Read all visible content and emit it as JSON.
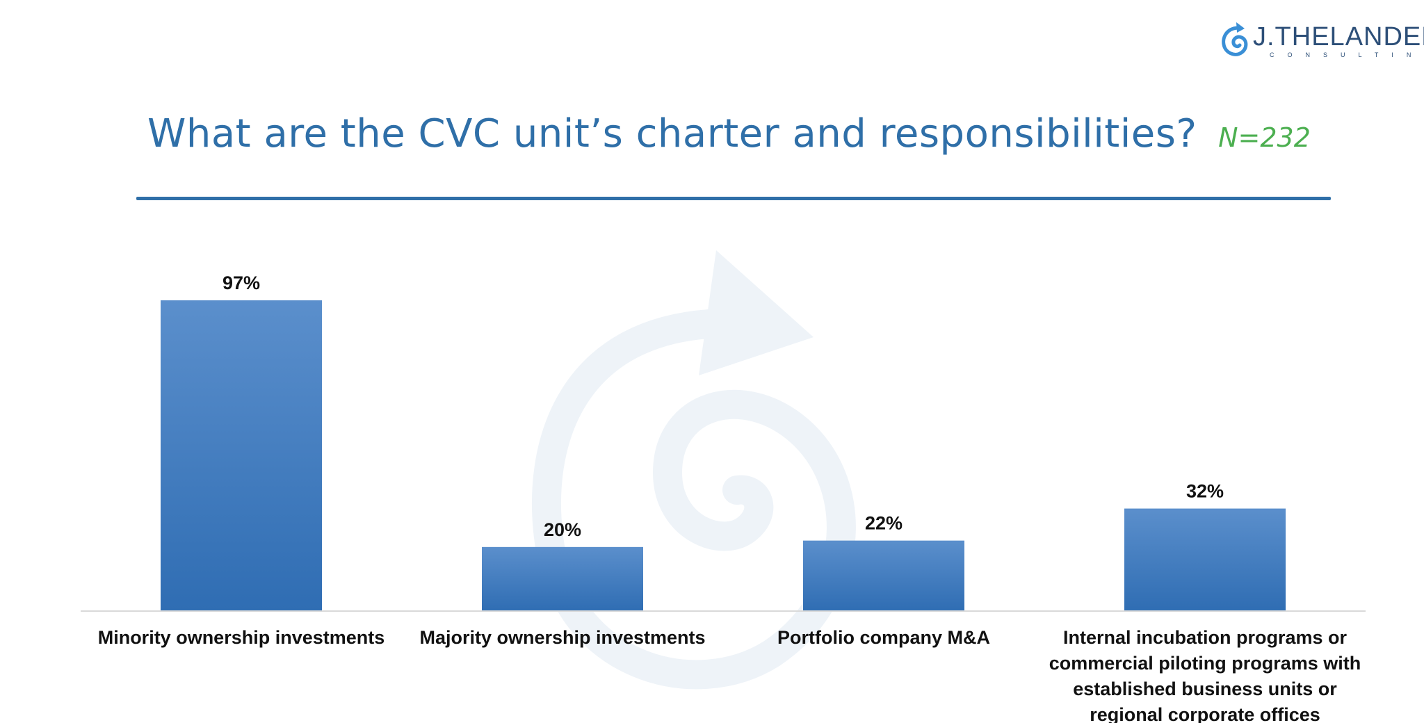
{
  "logo": {
    "name": "J.THELANDER",
    "sub": "CONSULTING",
    "icon": "spiral-arrow-icon",
    "color": "#2d4f78",
    "accent": "#3a8fd6"
  },
  "header": {
    "title": "What are the CVC unit’s charter and responsibilities?",
    "sample": "N=232"
  },
  "colors": {
    "title": "#2f6fa8",
    "sample": "#4caf50",
    "bar_top": "#5b8fcc",
    "bar_bottom": "#2f6db3",
    "label": "#111111"
  },
  "chart_data": {
    "type": "bar",
    "categories": [
      "Minority ownership investments",
      "Majority ownership investments",
      "Portfolio company M&A",
      "Internal incubation programs or commercial piloting programs with established business units or regional corporate offices"
    ],
    "category_lines": [
      [
        "Minority ownership investments"
      ],
      [
        "Majority ownership investments"
      ],
      [
        "Portfolio company M&A"
      ],
      [
        "Internal incubation programs or",
        "commercial piloting programs with",
        "established business units or",
        "regional corporate offices"
      ]
    ],
    "values": [
      97,
      20,
      22,
      32
    ],
    "data_labels": [
      "97%",
      "20%",
      "22%",
      "32%"
    ],
    "ylim": [
      0,
      100
    ],
    "grid": false,
    "legend": "none"
  }
}
